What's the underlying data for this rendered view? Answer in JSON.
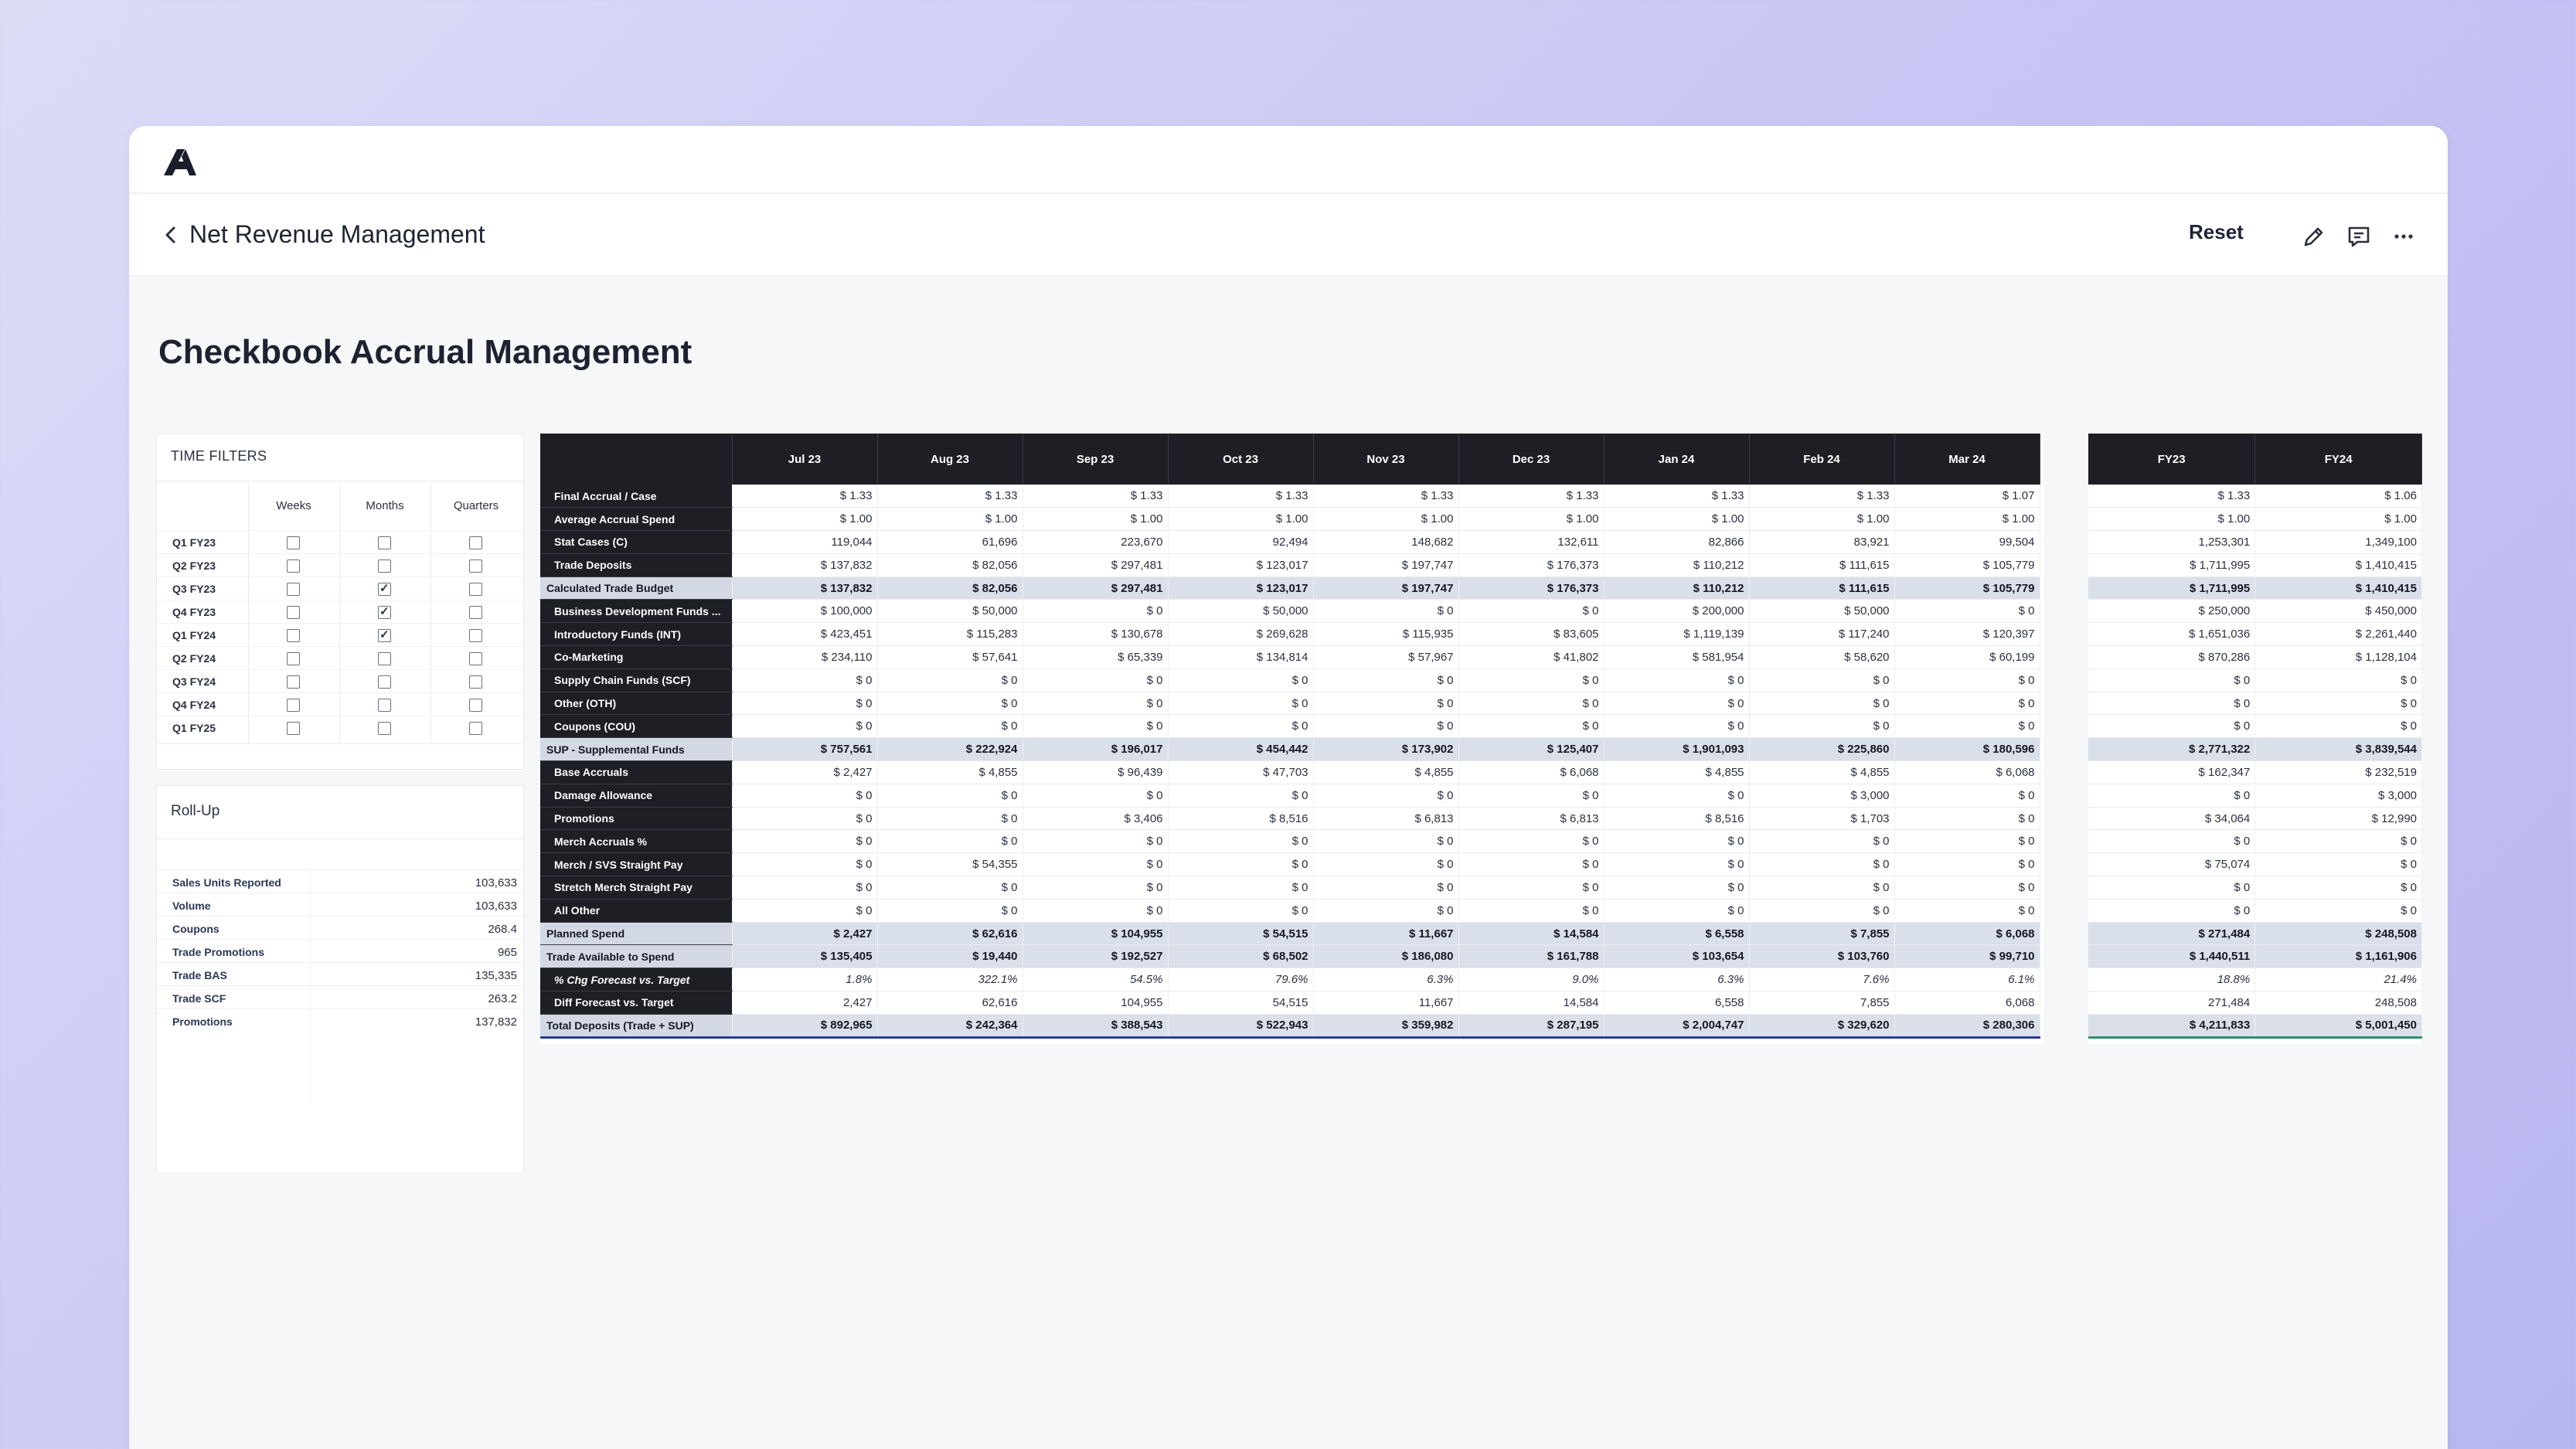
{
  "nav": {
    "title": "Net Revenue Management",
    "reset_label": "Reset"
  },
  "icons": {
    "logo": "logo-icon",
    "back": "chevron-left-icon",
    "edit": "pencil-icon",
    "comment": "comment-icon",
    "more": "more-horizontal-icon"
  },
  "page": {
    "title": "Checkbook Accrual Management"
  },
  "time_filters": {
    "title": "TIME FILTERS",
    "columns": [
      "Weeks",
      "Months",
      "Quarters"
    ],
    "rows": [
      {
        "label": "Q1 FY23",
        "checked": [
          false,
          false,
          false
        ]
      },
      {
        "label": "Q2 FY23",
        "checked": [
          false,
          false,
          false
        ]
      },
      {
        "label": "Q3 FY23",
        "checked": [
          false,
          true,
          false
        ]
      },
      {
        "label": "Q4 FY23",
        "checked": [
          false,
          true,
          false
        ]
      },
      {
        "label": "Q1 FY24",
        "checked": [
          false,
          true,
          false
        ]
      },
      {
        "label": "Q2 FY24",
        "checked": [
          false,
          false,
          false
        ]
      },
      {
        "label": "Q3 FY24",
        "checked": [
          false,
          false,
          false
        ]
      },
      {
        "label": "Q4 FY24",
        "checked": [
          false,
          false,
          false
        ]
      },
      {
        "label": "Q1 FY25",
        "checked": [
          false,
          false,
          false
        ]
      }
    ]
  },
  "rollup": {
    "title": "Roll-Up",
    "rows": [
      {
        "label": "Sales Units Reported",
        "value": "103,633"
      },
      {
        "label": "Volume",
        "value": "103,633"
      },
      {
        "label": "Coupons",
        "value": "268.4"
      },
      {
        "label": "Trade Promotions",
        "value": "965"
      },
      {
        "label": "Trade BAS",
        "value": "135,335"
      },
      {
        "label": "Trade SCF",
        "value": "263.2"
      },
      {
        "label": "Promotions",
        "value": "137,832"
      }
    ]
  },
  "table": {
    "months": [
      "Jul 23",
      "Aug 23",
      "Sep 23",
      "Oct 23",
      "Nov 23",
      "Dec 23",
      "Jan 24",
      "Feb 24",
      "Mar 24"
    ],
    "fy_columns": [
      "FY23",
      "FY24"
    ],
    "rows": [
      {
        "label": "Final Accrual / Case",
        "style": "",
        "values": [
          "$ 1.33",
          "$ 1.33",
          "$ 1.33",
          "$ 1.33",
          "$ 1.33",
          "$ 1.33",
          "$ 1.33",
          "$ 1.33",
          "$ 1.07"
        ],
        "fy": [
          "$ 1.33",
          "$ 1.06"
        ]
      },
      {
        "label": "Average Accrual Spend",
        "style": "",
        "values": [
          "$ 1.00",
          "$ 1.00",
          "$ 1.00",
          "$ 1.00",
          "$ 1.00",
          "$ 1.00",
          "$ 1.00",
          "$ 1.00",
          "$ 1.00"
        ],
        "fy": [
          "$ 1.00",
          "$ 1.00"
        ]
      },
      {
        "label": "Stat Cases (C)",
        "style": "",
        "values": [
          "119,044",
          "61,696",
          "223,670",
          "92,494",
          "148,682",
          "132,611",
          "82,866",
          "83,921",
          "99,504"
        ],
        "fy": [
          "1,253,301",
          "1,349,100"
        ]
      },
      {
        "label": "Trade Deposits",
        "style": "",
        "values": [
          "$ 137,832",
          "$ 82,056",
          "$ 297,481",
          "$ 123,017",
          "$ 197,747",
          "$ 176,373",
          "$ 110,212",
          "$ 111,615",
          "$ 105,779"
        ],
        "fy": [
          "$ 1,711,995",
          "$ 1,410,415"
        ]
      },
      {
        "label": "Calculated Trade Budget",
        "style": "sub",
        "values": [
          "$ 137,832",
          "$ 82,056",
          "$ 297,481",
          "$ 123,017",
          "$ 197,747",
          "$ 176,373",
          "$ 110,212",
          "$ 111,615",
          "$ 105,779"
        ],
        "fy": [
          "$ 1,711,995",
          "$ 1,410,415"
        ]
      },
      {
        "label": "Business Development Funds ...",
        "style": "",
        "values": [
          "$ 100,000",
          "$ 50,000",
          "$ 0",
          "$ 50,000",
          "$ 0",
          "$ 0",
          "$ 200,000",
          "$ 50,000",
          "$ 0"
        ],
        "fy": [
          "$ 250,000",
          "$ 450,000"
        ]
      },
      {
        "label": "Introductory Funds (INT)",
        "style": "",
        "values": [
          "$ 423,451",
          "$ 115,283",
          "$ 130,678",
          "$ 269,628",
          "$ 115,935",
          "$ 83,605",
          "$ 1,119,139",
          "$ 117,240",
          "$ 120,397"
        ],
        "fy": [
          "$ 1,651,036",
          "$ 2,261,440"
        ]
      },
      {
        "label": "Co-Marketing",
        "style": "",
        "values": [
          "$ 234,110",
          "$ 57,641",
          "$ 65,339",
          "$ 134,814",
          "$ 57,967",
          "$ 41,802",
          "$ 581,954",
          "$ 58,620",
          "$ 60,199"
        ],
        "fy": [
          "$ 870,286",
          "$ 1,128,104"
        ]
      },
      {
        "label": "Supply Chain Funds (SCF)",
        "style": "",
        "values": [
          "$ 0",
          "$ 0",
          "$ 0",
          "$ 0",
          "$ 0",
          "$ 0",
          "$ 0",
          "$ 0",
          "$ 0"
        ],
        "fy": [
          "$ 0",
          "$ 0"
        ]
      },
      {
        "label": "Other (OTH)",
        "style": "",
        "values": [
          "$ 0",
          "$ 0",
          "$ 0",
          "$ 0",
          "$ 0",
          "$ 0",
          "$ 0",
          "$ 0",
          "$ 0"
        ],
        "fy": [
          "$ 0",
          "$ 0"
        ]
      },
      {
        "label": "Coupons (COU)",
        "style": "",
        "values": [
          "$ 0",
          "$ 0",
          "$ 0",
          "$ 0",
          "$ 0",
          "$ 0",
          "$ 0",
          "$ 0",
          "$ 0"
        ],
        "fy": [
          "$ 0",
          "$ 0"
        ]
      },
      {
        "label": "SUP - Supplemental Funds",
        "style": "sub",
        "values": [
          "$ 757,561",
          "$ 222,924",
          "$ 196,017",
          "$ 454,442",
          "$ 173,902",
          "$ 125,407",
          "$ 1,901,093",
          "$ 225,860",
          "$ 180,596"
        ],
        "fy": [
          "$ 2,771,322",
          "$ 3,839,544"
        ]
      },
      {
        "label": "Base Accruals",
        "style": "",
        "values": [
          "$ 2,427",
          "$ 4,855",
          "$ 96,439",
          "$ 47,703",
          "$ 4,855",
          "$ 6,068",
          "$ 4,855",
          "$ 4,855",
          "$ 6,068"
        ],
        "fy": [
          "$ 162,347",
          "$ 232,519"
        ]
      },
      {
        "label": "Damage Allowance",
        "style": "",
        "values": [
          "$ 0",
          "$ 0",
          "$ 0",
          "$ 0",
          "$ 0",
          "$ 0",
          "$ 0",
          "$ 3,000",
          "$ 0"
        ],
        "fy": [
          "$ 0",
          "$ 3,000"
        ]
      },
      {
        "label": "Promotions",
        "style": "",
        "values": [
          "$ 0",
          "$ 0",
          "$ 3,406",
          "$ 8,516",
          "$ 6,813",
          "$ 6,813",
          "$ 8,516",
          "$ 1,703",
          "$ 0"
        ],
        "fy": [
          "$ 34,064",
          "$ 12,990"
        ]
      },
      {
        "label": "Merch Accruals %",
        "style": "",
        "values": [
          "$ 0",
          "$ 0",
          "$ 0",
          "$ 0",
          "$ 0",
          "$ 0",
          "$ 0",
          "$ 0",
          "$ 0"
        ],
        "fy": [
          "$ 0",
          "$ 0"
        ]
      },
      {
        "label": "Merch / SVS Straight Pay",
        "style": "",
        "values": [
          "$ 0",
          "$ 54,355",
          "$ 0",
          "$ 0",
          "$ 0",
          "$ 0",
          "$ 0",
          "$ 0",
          "$ 0"
        ],
        "fy": [
          "$ 75,074",
          "$ 0"
        ]
      },
      {
        "label": "Stretch Merch Straight Pay",
        "style": "",
        "values": [
          "$ 0",
          "$ 0",
          "$ 0",
          "$ 0",
          "$ 0",
          "$ 0",
          "$ 0",
          "$ 0",
          "$ 0"
        ],
        "fy": [
          "$ 0",
          "$ 0"
        ]
      },
      {
        "label": "All Other",
        "style": "",
        "values": [
          "$ 0",
          "$ 0",
          "$ 0",
          "$ 0",
          "$ 0",
          "$ 0",
          "$ 0",
          "$ 0",
          "$ 0"
        ],
        "fy": [
          "$ 0",
          "$ 0"
        ]
      },
      {
        "label": "Planned Spend",
        "style": "sub",
        "values": [
          "$ 2,427",
          "$ 62,616",
          "$ 104,955",
          "$ 54,515",
          "$ 11,667",
          "$ 14,584",
          "$ 6,558",
          "$ 7,855",
          "$ 6,068"
        ],
        "fy": [
          "$ 271,484",
          "$ 248,508"
        ]
      },
      {
        "label": "Trade Available to Spend",
        "style": "sub",
        "values": [
          "$ 135,405",
          "$ 19,440",
          "$ 192,527",
          "$ 68,502",
          "$ 186,080",
          "$ 161,788",
          "$ 103,654",
          "$ 103,760",
          "$ 99,710"
        ],
        "fy": [
          "$ 1,440,511",
          "$ 1,161,906"
        ]
      },
      {
        "label": "% Chg Forecast vs. Target",
        "style": "it",
        "values": [
          "1.8%",
          "322.1%",
          "54.5%",
          "79.6%",
          "6.3%",
          "9.0%",
          "6.3%",
          "7.6%",
          "6.1%"
        ],
        "fy": [
          "18.8%",
          "21.4%"
        ]
      },
      {
        "label": "Diff Forecast vs. Target",
        "style": "",
        "values": [
          "2,427",
          "62,616",
          "104,955",
          "54,515",
          "11,667",
          "14,584",
          "6,558",
          "7,855",
          "6,068"
        ],
        "fy": [
          "271,484",
          "248,508"
        ]
      },
      {
        "label": "Total Deposits (Trade + SUP)",
        "style": "sub total",
        "values": [
          "$ 892,965",
          "$ 242,364",
          "$ 388,543",
          "$ 522,943",
          "$ 359,982",
          "$ 287,195",
          "$ 2,004,747",
          "$ 329,620",
          "$ 280,306"
        ],
        "fy": [
          "$ 4,211,833",
          "$ 5,001,450"
        ]
      }
    ]
  }
}
